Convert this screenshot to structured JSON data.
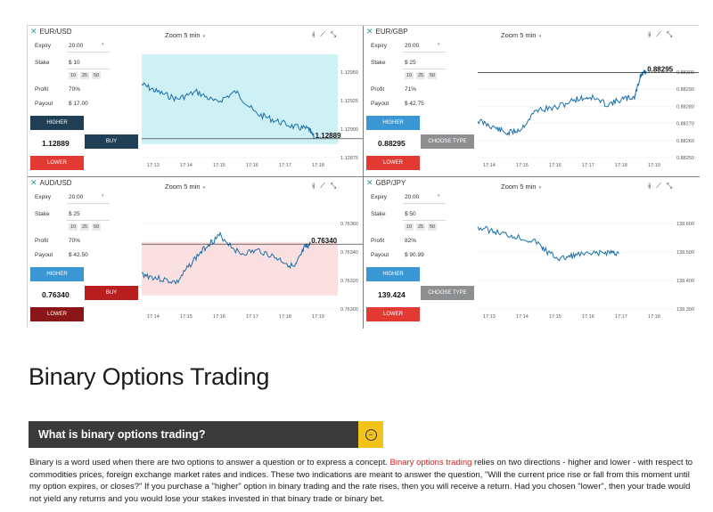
{
  "panels": [
    {
      "pair": "EUR/USD",
      "expiry_label": "Expiry",
      "expiry_value": "20:00",
      "stake_label": "Stake",
      "stake_value": "$ 10",
      "chips": [
        "10",
        "25",
        "50"
      ],
      "profit_label": "Profit",
      "profit_value": "70%",
      "payout_label": "Payout",
      "payout_value": "$ 17.00",
      "higher_label": "HIGHER",
      "price": "1.12889",
      "action_label": "BUY",
      "lower_label": "LOWER",
      "zoom": "Zoom 5 min",
      "yticks": [
        "1.12950",
        "1.12925",
        "1.12900",
        "1.12875"
      ],
      "xticks": [
        "17:13",
        "17:14",
        "17:15",
        "17:16",
        "17:17",
        "17:18"
      ],
      "current": "1.12889",
      "zone": "#cdf1f5"
    },
    {
      "pair": "EUR/GBP",
      "expiry_label": "Expiry",
      "expiry_value": "20:00",
      "stake_label": "Stake",
      "stake_value": "$ 25",
      "chips": [
        "10",
        "25",
        "50"
      ],
      "profit_label": "Profit",
      "profit_value": "71%",
      "payout_label": "Payout",
      "payout_value": "$ 42.75",
      "higher_label": "HIGHER",
      "price": "0.88295",
      "action_label": "CHOOSE TYPE",
      "lower_label": "LOWER",
      "zoom": "Zoom 5 min",
      "yticks": [
        "0.88300",
        "0.88290",
        "0.88280",
        "0.88270",
        "0.88260",
        "0.88250"
      ],
      "xticks": [
        "17:14",
        "17:15",
        "17:16",
        "17:17",
        "17:18",
        "17:19"
      ],
      "current": "0.88295",
      "zone": ""
    },
    {
      "pair": "AUD/USD",
      "expiry_label": "Expiry",
      "expiry_value": "20:00",
      "stake_label": "Stake",
      "stake_value": "$ 25",
      "chips": [
        "10",
        "25",
        "50"
      ],
      "profit_label": "Profit",
      "profit_value": "70%",
      "payout_label": "Payout",
      "payout_value": "$ 42.50",
      "higher_label": "HIGHER",
      "price": "0.76340",
      "action_label": "BUY",
      "lower_label": "LOWER",
      "zoom": "Zoom 5 min",
      "yticks": [
        "0.76360",
        "0.76340",
        "0.76320",
        "0.76300"
      ],
      "xticks": [
        "17:14",
        "17:15",
        "17:16",
        "17:17",
        "17:18",
        "17:19"
      ],
      "current": "0.76340",
      "zone": "#fbe0e2"
    },
    {
      "pair": "GBP/JPY",
      "expiry_label": "Expiry",
      "expiry_value": "20:00",
      "stake_label": "Stake",
      "stake_value": "$ 50",
      "chips": [
        "10",
        "25",
        "50"
      ],
      "profit_label": "Profit",
      "profit_value": "82%",
      "payout_label": "Payout",
      "payout_value": "$ 90.99",
      "higher_label": "HIGHER",
      "price": "139.424",
      "action_label": "CHOOSE TYPE",
      "lower_label": "LOWER",
      "zoom": "Zoom 5 min",
      "yticks": [
        "139.600",
        "139.500",
        "139.400",
        "139.300"
      ],
      "xticks": [
        "17:13",
        "17:14",
        "17:15",
        "17:16",
        "17:17",
        "17:18"
      ],
      "current": "",
      "zone": ""
    }
  ],
  "article": {
    "heading": "Binary Options Trading",
    "faq_question": "What is binary options trading?",
    "faq_toggle": "⊖",
    "para_a": "Binary is a word used when there are two options to answer a question or to express a concept. ",
    "para_link": "Binary options trading",
    "para_b": " relies on two directions - higher and lower - with respect to commodities prices, foreign exchange market rates and indices. These two indications are meant to answer the question, \"Will the current price rise or fall from this moment until my option expires, or closes?\" If you purchase a \"higher\" option in binary trading and the rate rises, then you will receive a return. Had you chosen \"lower\", then your trade would not yield any returns and you would lose your stakes invested in that binary trade or binary bet."
  },
  "colors": {
    "line": "#1b6fa8",
    "accent_red": "#d42020",
    "faq_toggle": "#f2c31c"
  }
}
